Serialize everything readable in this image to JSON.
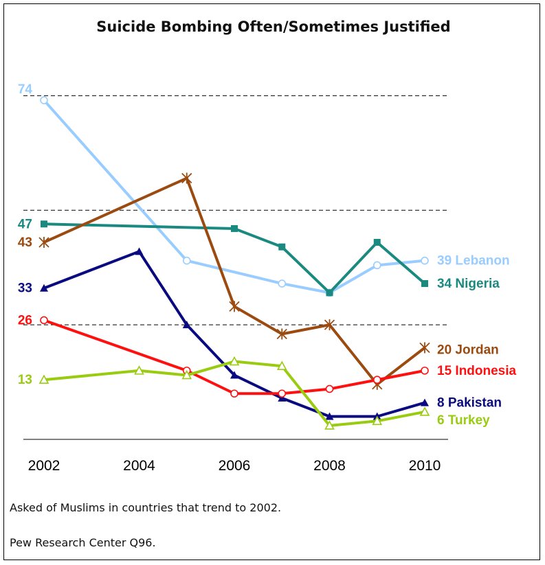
{
  "chart_data": {
    "type": "line",
    "title": "Suicide Bombing Often/Sometimes Justified",
    "x_ticks": [
      "2002",
      "2004",
      "2006",
      "2008",
      "2010"
    ],
    "xlim": [
      2002,
      2010
    ],
    "ylim": [
      0,
      80
    ],
    "grid": "dashed",
    "series": [
      {
        "name": "Lebanon",
        "color": "#99ccff",
        "marker": "circle-open",
        "points": [
          [
            2002,
            74
          ],
          [
            2005,
            39
          ],
          [
            2007,
            34
          ],
          [
            2008,
            32
          ],
          [
            2009,
            38
          ],
          [
            2010,
            39
          ]
        ],
        "start_label": "74",
        "end_label": "39 Lebanon"
      },
      {
        "name": "Nigeria",
        "color": "#1a8a80",
        "marker": "square",
        "points": [
          [
            2002,
            47
          ],
          [
            2006,
            46
          ],
          [
            2007,
            42
          ],
          [
            2008,
            32
          ],
          [
            2009,
            43
          ],
          [
            2010,
            34
          ]
        ],
        "start_label": "47",
        "end_label": "34 Nigeria"
      },
      {
        "name": "Jordan",
        "color": "#9b4a10",
        "marker": "asterisk",
        "points": [
          [
            2002,
            43
          ],
          [
            2005,
            57
          ],
          [
            2006,
            29
          ],
          [
            2007,
            23
          ],
          [
            2008,
            25
          ],
          [
            2009,
            12
          ],
          [
            2010,
            20
          ]
        ],
        "start_label": "43",
        "end_label": "20 Jordan"
      },
      {
        "name": "Pakistan",
        "color": "#0a0a80",
        "marker": "triangle",
        "points": [
          [
            2002,
            33
          ],
          [
            2004,
            41
          ],
          [
            2005,
            25
          ],
          [
            2006,
            14
          ],
          [
            2007,
            9
          ],
          [
            2008,
            5
          ],
          [
            2009,
            5
          ],
          [
            2010,
            8
          ]
        ],
        "start_label": "33",
        "end_label": "8 Pakistan"
      },
      {
        "name": "Indonesia",
        "color": "#ff1010",
        "marker": "circle-open",
        "points": [
          [
            2002,
            26
          ],
          [
            2005,
            15
          ],
          [
            2006,
            10
          ],
          [
            2007,
            10
          ],
          [
            2008,
            11
          ],
          [
            2009,
            13
          ],
          [
            2010,
            15
          ]
        ],
        "start_label": "26",
        "end_label": "15 Indonesia"
      },
      {
        "name": "Turkey",
        "color": "#99cc10",
        "marker": "triangle-open",
        "points": [
          [
            2002,
            13
          ],
          [
            2004,
            15
          ],
          [
            2005,
            14
          ],
          [
            2006,
            17
          ],
          [
            2007,
            16
          ],
          [
            2008,
            3
          ],
          [
            2009,
            4
          ],
          [
            2010,
            6
          ]
        ],
        "start_label": "13",
        "end_label": "6 Turkey"
      }
    ]
  },
  "notes": {
    "line1": "Asked of Muslims in countries that trend to 2002.",
    "line2": "Pew Research Center Q96."
  }
}
